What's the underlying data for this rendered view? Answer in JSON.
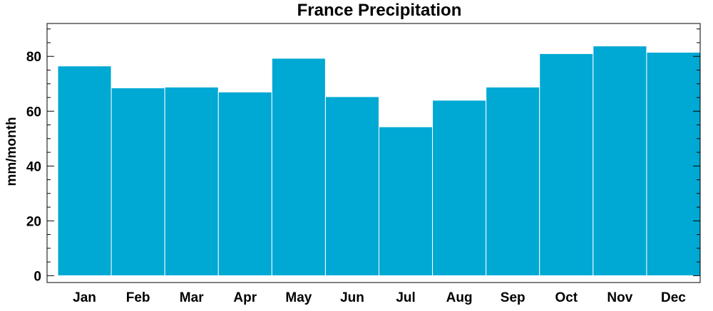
{
  "chart_data": {
    "type": "bar",
    "title": "France Precipitation",
    "xlabel": "",
    "ylabel": "mm/month",
    "categories": [
      "Jan",
      "Feb",
      "Mar",
      "Apr",
      "May",
      "Jun",
      "Jul",
      "Aug",
      "Sep",
      "Oct",
      "Nov",
      "Dec"
    ],
    "values": [
      76.5,
      68.5,
      68.8,
      67.0,
      79.3,
      65.3,
      54.3,
      64.0,
      68.8,
      81.0,
      83.8,
      81.5
    ],
    "ylim": [
      -2.5,
      92
    ],
    "yticks": [
      0,
      20,
      40,
      60,
      80
    ],
    "y_minor_step": 5,
    "grid": false,
    "colors": {
      "bar": "#00a8d4",
      "bar_edge": "#ffffff",
      "axis": "#000000"
    }
  }
}
